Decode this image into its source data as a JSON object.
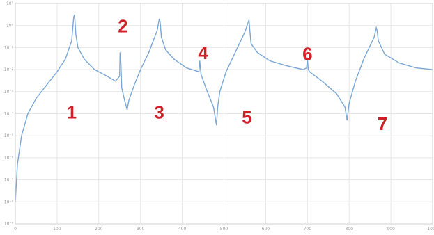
{
  "chart_data": {
    "type": "line",
    "title": "",
    "xlabel": "",
    "ylabel": "",
    "xscale": "linear",
    "yscale": "log",
    "xlim": [
      0,
      1000
    ],
    "ylim": [
      1e-09,
      10.0
    ],
    "grid": true,
    "x_ticks": [
      0,
      100,
      200,
      300,
      400,
      500,
      600,
      700,
      800,
      900,
      1000
    ],
    "x_tick_labels": [
      "0",
      "100",
      "200",
      "300",
      "400",
      "500",
      "600",
      "700",
      "800",
      "900",
      "1000"
    ],
    "y_ticks": [
      1e-09,
      1e-08,
      1e-07,
      1e-06,
      1e-05,
      0.0001,
      0.001,
      0.01,
      0.1,
      1.0,
      10.0
    ],
    "y_tick_labels": [
      "10⁻⁹",
      "10⁻⁸",
      "10⁻⁷",
      "10⁻⁶",
      "10⁻⁵",
      "10⁻⁴",
      "10⁻³",
      "10⁻²",
      "10⁻¹",
      "10⁰",
      "10¹"
    ],
    "series": [
      {
        "color": "#7aa7d4",
        "x": [
          0,
          5,
          15,
          30,
          50,
          75,
          100,
          120,
          135,
          140,
          142,
          145,
          150,
          165,
          190,
          220,
          240,
          250,
          251,
          253,
          255,
          262,
          268,
          272,
          285,
          300,
          320,
          340,
          345,
          347,
          350,
          360,
          380,
          410,
          440,
          442,
          443,
          445,
          460,
          475,
          482,
          485,
          490,
          505,
          525,
          550,
          560,
          562,
          565,
          580,
          610,
          650,
          690,
          698,
          700,
          702,
          705,
          735,
          770,
          790,
          795,
          800,
          815,
          835,
          860,
          865,
          867,
          870,
          885,
          920,
          960,
          1000
        ],
        "y": [
          1e-08,
          5e-07,
          1e-05,
          0.0001,
          0.0005,
          0.002,
          0.008,
          0.03,
          0.2,
          2.5,
          3.0,
          0.4,
          0.1,
          0.03,
          0.01,
          0.005,
          0.003,
          0.005,
          0.06,
          0.02,
          0.0015,
          0.0004,
          0.00015,
          0.0004,
          0.002,
          0.01,
          0.06,
          0.6,
          2.0,
          1.5,
          0.3,
          0.08,
          0.03,
          0.012,
          0.008,
          0.025,
          0.015,
          0.006,
          0.001,
          0.0002,
          3e-05,
          0.0002,
          0.001,
          0.008,
          0.05,
          0.5,
          1.8,
          0.6,
          0.15,
          0.06,
          0.025,
          0.015,
          0.01,
          0.012,
          0.03,
          0.01,
          0.008,
          0.003,
          0.0008,
          0.0002,
          5e-05,
          0.0003,
          0.003,
          0.03,
          0.3,
          0.8,
          0.6,
          0.2,
          0.05,
          0.02,
          0.012,
          0.01
        ]
      }
    ],
    "annotations": [
      {
        "text": "1",
        "x": 135,
        "y": 0.0001
      },
      {
        "text": "2",
        "x": 258,
        "y": 0.8
      },
      {
        "text": "3",
        "x": 345,
        "y": 0.0001
      },
      {
        "text": "4",
        "x": 450,
        "y": 0.05
      },
      {
        "text": "5",
        "x": 555,
        "y": 6e-05
      },
      {
        "text": "6",
        "x": 700,
        "y": 0.045
      },
      {
        "text": "7",
        "x": 880,
        "y": 3e-05
      }
    ]
  }
}
